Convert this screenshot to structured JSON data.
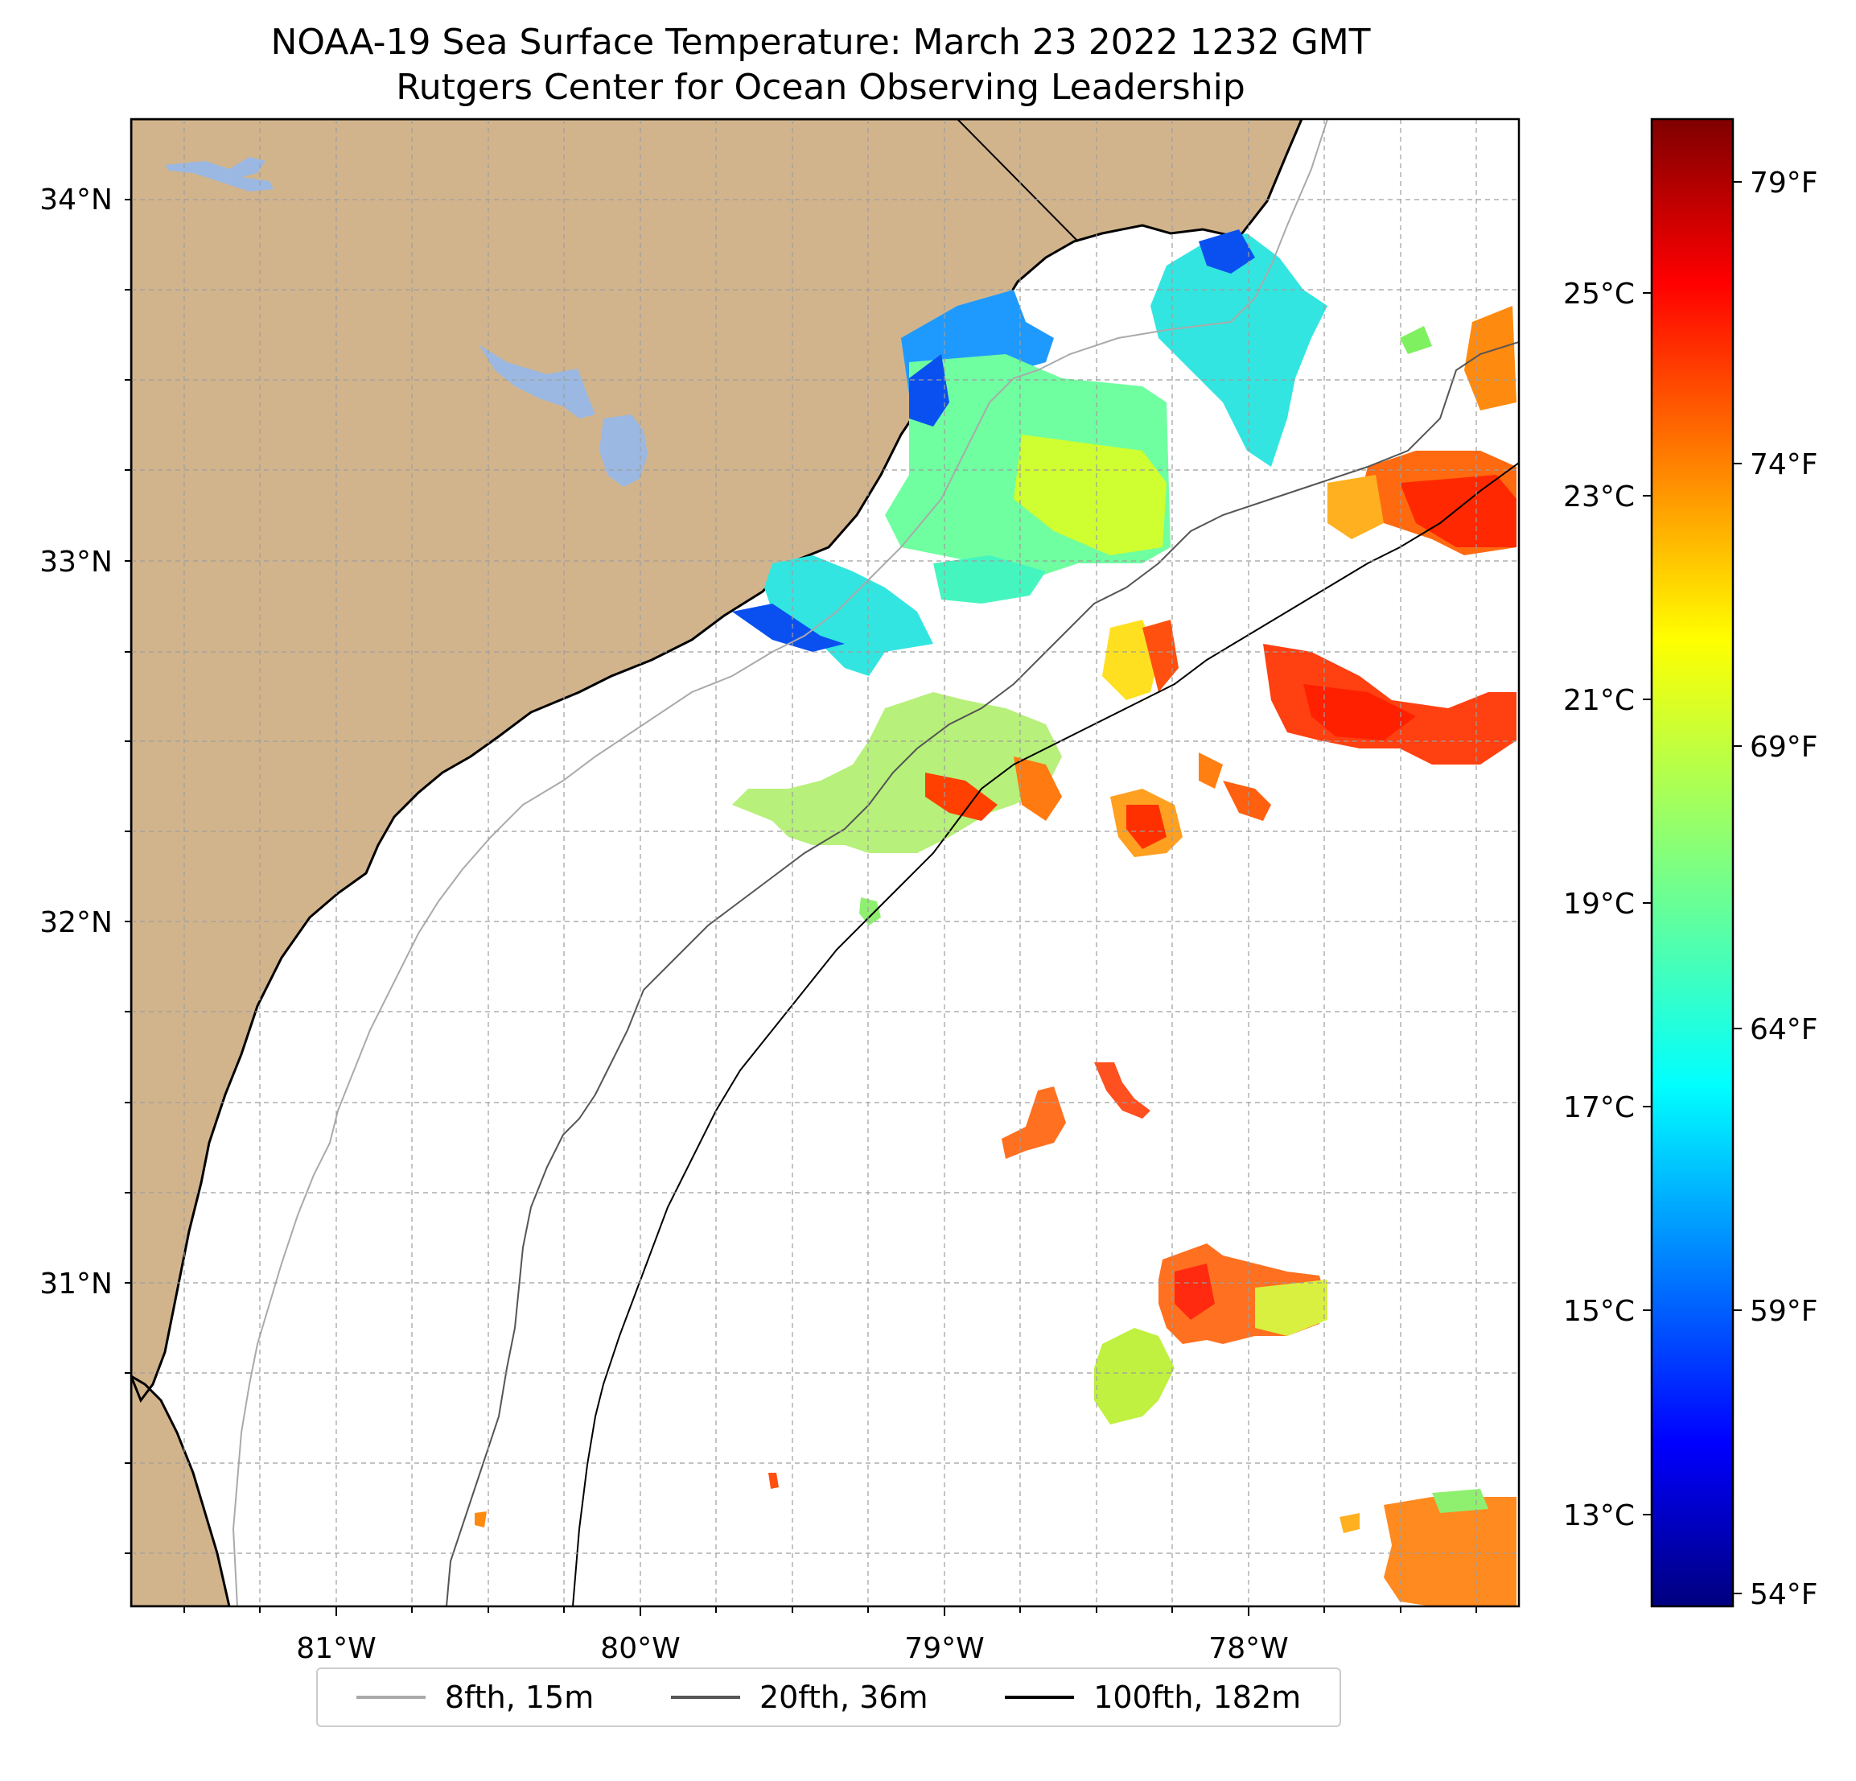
{
  "title": "NOAA-19 Sea Surface Temperature: March 23 2022 1232 GMT",
  "subtitle": "Rutgers Center for Ocean Observing Leadership",
  "map": {
    "lon_ticks": [
      "81°W",
      "80°W",
      "79°W",
      "78°W"
    ],
    "lat_ticks": [
      "34°N",
      "33°N",
      "32°N",
      "31°N"
    ],
    "land_color": "#d2b48c",
    "lake_color": "#9ab8e2",
    "grid": true
  },
  "colorbar": {
    "colormap": "jet",
    "celsius_ticks": [
      "25°C",
      "23°C",
      "21°C",
      "19°C",
      "17°C",
      "15°C",
      "13°C"
    ],
    "fahrenheit_ticks": [
      "79°F",
      "74°F",
      "69°F",
      "64°F",
      "59°F",
      "54°F"
    ]
  },
  "legend": {
    "items": [
      {
        "label": "8fth, 15m",
        "color": "#aaaaaa"
      },
      {
        "label": "20fth, 36m",
        "color": "#555555"
      },
      {
        "label": "100fth, 182m",
        "color": "#000000"
      }
    ]
  }
}
